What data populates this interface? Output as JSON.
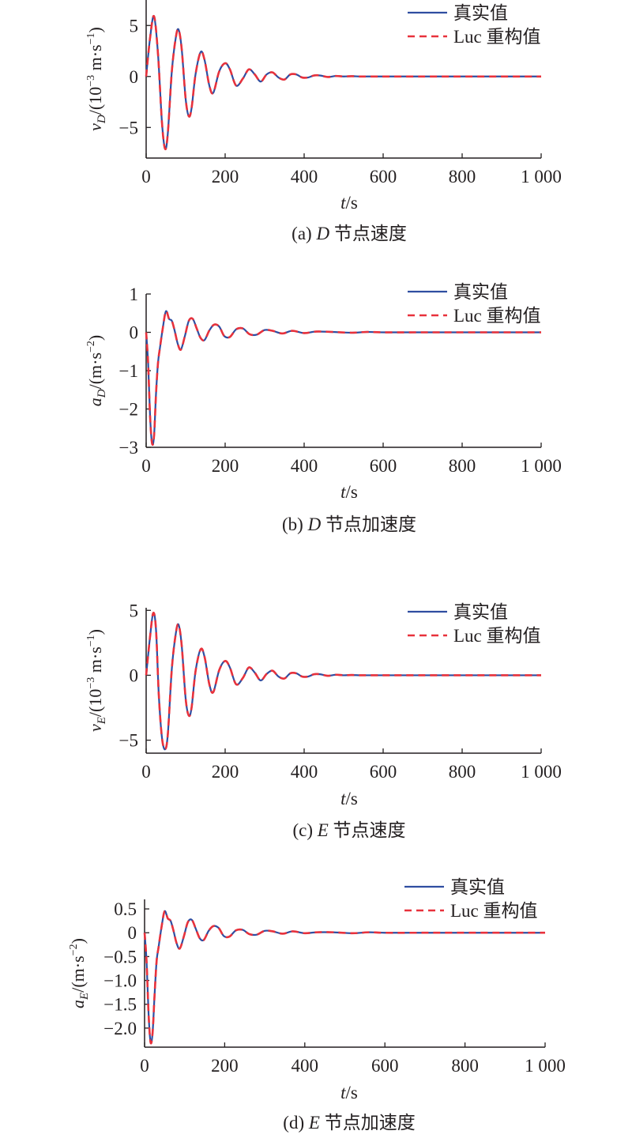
{
  "chart_data": [
    {
      "type": "line",
      "caption": "(a) D 节点速度",
      "ylabel": "v_D/(10^-3 m·s^-1)",
      "xlabel": "t/s",
      "xlim": [
        0,
        1000
      ],
      "ylim": [
        -8,
        7.5
      ],
      "xticks": [
        "0",
        "200",
        "400",
        "600",
        "800",
        "1 000"
      ],
      "xtick_values": [
        0,
        200,
        400,
        600,
        800,
        1000
      ],
      "yticks": [
        "5",
        "0",
        "−5"
      ],
      "ytick_values": [
        5,
        0,
        -5
      ],
      "legend_position": "top-right",
      "series": [
        {
          "name": "真实值",
          "color": "#2f4ea1",
          "style": "solid",
          "x": [
            0,
            10,
            20,
            30,
            40,
            48,
            55,
            65,
            75,
            82,
            90,
            100,
            108,
            115,
            125,
            138,
            148,
            160,
            170,
            185,
            200,
            212,
            228,
            245,
            260,
            275,
            290,
            305,
            320,
            335,
            350,
            365,
            380,
            395,
            410,
            425,
            440,
            460,
            480,
            500,
            520,
            540,
            560,
            600,
            700,
            800,
            900,
            1000
          ],
          "y": [
            0,
            3.8,
            5.9,
            2.2,
            -4.5,
            -7.1,
            -5.5,
            0.5,
            3.8,
            4.6,
            2.7,
            -2.2,
            -3.9,
            -3.1,
            0.2,
            2.4,
            1.6,
            -0.9,
            -1.6,
            0.5,
            1.3,
            0.7,
            -0.9,
            -0.2,
            0.7,
            0.2,
            -0.5,
            0.2,
            0.4,
            -0.1,
            -0.3,
            0.2,
            0.2,
            -0.1,
            -0.1,
            0.1,
            0.1,
            -0.05,
            0.05,
            0,
            0.03,
            0,
            0,
            0,
            0,
            0,
            0,
            0
          ]
        },
        {
          "name": "Luc 重构值",
          "color": "#e8323c",
          "style": "dashed",
          "x": [
            0,
            10,
            20,
            30,
            40,
            48,
            55,
            65,
            75,
            82,
            90,
            100,
            108,
            115,
            125,
            138,
            148,
            160,
            170,
            185,
            200,
            212,
            228,
            245,
            260,
            275,
            290,
            305,
            320,
            335,
            350,
            365,
            380,
            395,
            410,
            425,
            440,
            460,
            480,
            500,
            520,
            540,
            560,
            600,
            700,
            800,
            900,
            1000
          ],
          "y": [
            0,
            3.8,
            5.9,
            2.2,
            -4.5,
            -7.1,
            -5.5,
            0.5,
            3.8,
            4.6,
            2.7,
            -2.2,
            -3.9,
            -3.1,
            0.2,
            2.4,
            1.6,
            -0.9,
            -1.6,
            0.5,
            1.3,
            0.7,
            -0.9,
            -0.2,
            0.7,
            0.2,
            -0.5,
            0.2,
            0.4,
            -0.1,
            -0.3,
            0.2,
            0.2,
            -0.1,
            -0.1,
            0.1,
            0.1,
            -0.05,
            0.05,
            0,
            0.03,
            0,
            0,
            0,
            0,
            0,
            0,
            0
          ]
        }
      ]
    },
    {
      "type": "line",
      "caption": "(b) D 节点加速度",
      "ylabel": "a_D/(m·s^-2)",
      "xlabel": "t/s",
      "xlim": [
        0,
        1000
      ],
      "ylim": [
        -3,
        1
      ],
      "xticks": [
        "0",
        "200",
        "400",
        "600",
        "800",
        "1 000"
      ],
      "xtick_values": [
        0,
        200,
        400,
        600,
        800,
        1000
      ],
      "yticks": [
        "1",
        "0",
        "−1",
        "−2",
        "−3"
      ],
      "ytick_values": [
        1,
        0,
        -1,
        -2,
        -3
      ],
      "legend_position": "top-right",
      "series": [
        {
          "name": "真实值",
          "color": "#2f4ea1",
          "style": "solid",
          "x": [
            0,
            5,
            10,
            15,
            20,
            25,
            30,
            35,
            42,
            50,
            58,
            65,
            72,
            80,
            88,
            98,
            108,
            118,
            128,
            138,
            148,
            160,
            172,
            185,
            198,
            212,
            228,
            245,
            262,
            280,
            300,
            320,
            345,
            370,
            400,
            430,
            470,
            520,
            560,
            600,
            700,
            800,
            900,
            1000
          ],
          "y": [
            0,
            -0.8,
            -2.2,
            -2.9,
            -2.7,
            -1.6,
            -0.8,
            -0.4,
            0.1,
            0.55,
            0.35,
            0.3,
            0.05,
            -0.3,
            -0.45,
            -0.1,
            0.3,
            0.35,
            0.1,
            -0.15,
            -0.2,
            0.05,
            0.2,
            0.15,
            -0.1,
            -0.12,
            0.08,
            0.1,
            -0.05,
            -0.06,
            0.06,
            0.04,
            -0.03,
            0.04,
            -0.02,
            0.02,
            0.01,
            -0.01,
            0.01,
            0,
            0,
            0,
            0,
            0
          ]
        },
        {
          "name": "Luc 重构值",
          "color": "#e8323c",
          "style": "dashed",
          "x": [
            0,
            5,
            10,
            15,
            20,
            25,
            30,
            35,
            42,
            50,
            58,
            65,
            72,
            80,
            88,
            98,
            108,
            118,
            128,
            138,
            148,
            160,
            172,
            185,
            198,
            212,
            228,
            245,
            262,
            280,
            300,
            320,
            345,
            370,
            400,
            430,
            470,
            520,
            560,
            600,
            700,
            800,
            900,
            1000
          ],
          "y": [
            0,
            -0.8,
            -2.2,
            -2.9,
            -2.7,
            -1.6,
            -0.8,
            -0.4,
            0.1,
            0.55,
            0.35,
            0.3,
            0.05,
            -0.3,
            -0.45,
            -0.1,
            0.3,
            0.35,
            0.1,
            -0.15,
            -0.2,
            0.05,
            0.2,
            0.15,
            -0.1,
            -0.12,
            0.08,
            0.1,
            -0.05,
            -0.06,
            0.06,
            0.04,
            -0.03,
            0.04,
            -0.02,
            0.02,
            0.01,
            -0.01,
            0.01,
            0,
            0,
            0,
            0,
            0
          ]
        }
      ]
    },
    {
      "type": "line",
      "caption": "(c) E 节点速度",
      "ylabel": "v_E/(10^-3 m·s^-1)",
      "xlabel": "t/s",
      "xlim": [
        0,
        1000
      ],
      "ylim": [
        -6,
        5.2
      ],
      "xticks": [
        "0",
        "200",
        "400",
        "600",
        "800",
        "1 000"
      ],
      "xtick_values": [
        0,
        200,
        400,
        600,
        800,
        1000
      ],
      "yticks": [
        "5",
        "0",
        "−5"
      ],
      "ytick_values": [
        5,
        0,
        -5
      ],
      "legend_position": "top-right",
      "series": [
        {
          "name": "真实值",
          "color": "#2f4ea1",
          "style": "solid",
          "x": [
            0,
            10,
            18,
            25,
            32,
            40,
            48,
            55,
            65,
            75,
            82,
            90,
            100,
            108,
            115,
            125,
            138,
            148,
            160,
            170,
            185,
            200,
            212,
            228,
            245,
            260,
            275,
            290,
            305,
            320,
            335,
            350,
            365,
            380,
            395,
            410,
            425,
            440,
            460,
            480,
            500,
            520,
            540,
            560,
            600,
            700,
            800,
            900,
            1000
          ],
          "y": [
            0,
            3,
            4.8,
            3.5,
            -1.5,
            -4.8,
            -5.7,
            -4.5,
            0.5,
            3.2,
            3.9,
            2.3,
            -1.8,
            -3.1,
            -2.5,
            0.3,
            2.0,
            1.4,
            -0.7,
            -1.3,
            0.4,
            1.1,
            0.6,
            -0.7,
            -0.2,
            0.6,
            0.2,
            -0.4,
            0.1,
            0.35,
            -0.1,
            -0.25,
            0.15,
            0.15,
            -0.1,
            -0.1,
            0.08,
            0.08,
            -0.04,
            0.04,
            0,
            0.02,
            0,
            0,
            0,
            0,
            0,
            0,
            0
          ]
        },
        {
          "name": "Luc 重构值",
          "color": "#e8323c",
          "style": "dashed",
          "x": [
            0,
            10,
            18,
            25,
            32,
            40,
            48,
            55,
            65,
            75,
            82,
            90,
            100,
            108,
            115,
            125,
            138,
            148,
            160,
            170,
            185,
            200,
            212,
            228,
            245,
            260,
            275,
            290,
            305,
            320,
            335,
            350,
            365,
            380,
            395,
            410,
            425,
            440,
            460,
            480,
            500,
            520,
            540,
            560,
            600,
            700,
            800,
            900,
            1000
          ],
          "y": [
            0,
            3,
            4.8,
            3.5,
            -1.5,
            -4.8,
            -5.7,
            -4.5,
            0.5,
            3.2,
            3.9,
            2.3,
            -1.8,
            -3.1,
            -2.5,
            0.3,
            2.0,
            1.4,
            -0.7,
            -1.3,
            0.4,
            1.1,
            0.6,
            -0.7,
            -0.2,
            0.6,
            0.2,
            -0.4,
            0.1,
            0.35,
            -0.1,
            -0.25,
            0.15,
            0.15,
            -0.1,
            -0.1,
            0.08,
            0.08,
            -0.04,
            0.04,
            0,
            0.02,
            0,
            0,
            0,
            0,
            0,
            0,
            0
          ]
        }
      ]
    },
    {
      "type": "line",
      "caption": "(d) E 节点加速度",
      "ylabel": "a_E/(m·s^-2)",
      "xlabel": "t/s",
      "xlim": [
        0,
        1000
      ],
      "ylim": [
        -2.4,
        0.7
      ],
      "xticks": [
        "0",
        "200",
        "400",
        "600",
        "800",
        "1 000"
      ],
      "xtick_values": [
        0,
        200,
        400,
        600,
        800,
        1000
      ],
      "yticks": [
        "0.5",
        "0",
        "−0.5",
        "−1.0",
        "−1.5",
        "−2.0"
      ],
      "ytick_values": [
        0.5,
        0,
        -0.5,
        -1.0,
        -1.5,
        -2.0
      ],
      "legend_position": "top-right",
      "series": [
        {
          "name": "真实值",
          "color": "#2f4ea1",
          "style": "solid",
          "x": [
            0,
            5,
            10,
            15,
            20,
            25,
            30,
            35,
            42,
            50,
            58,
            65,
            72,
            80,
            88,
            98,
            108,
            118,
            128,
            138,
            148,
            160,
            172,
            185,
            198,
            212,
            228,
            245,
            262,
            280,
            300,
            320,
            345,
            370,
            400,
            430,
            470,
            520,
            560,
            600,
            700,
            800,
            900,
            1000
          ],
          "y": [
            0,
            -0.6,
            -1.7,
            -2.3,
            -2.1,
            -1.3,
            -0.6,
            -0.3,
            0.1,
            0.45,
            0.3,
            0.25,
            0.05,
            -0.22,
            -0.33,
            -0.08,
            0.22,
            0.27,
            0.08,
            -0.12,
            -0.15,
            0.04,
            0.14,
            0.1,
            -0.07,
            -0.08,
            0.05,
            0.06,
            -0.03,
            -0.04,
            0.04,
            0.03,
            -0.02,
            0.03,
            -0.01,
            0.01,
            0.01,
            -0.01,
            0.01,
            0,
            0,
            0,
            0,
            0
          ]
        },
        {
          "name": "Luc 重构值",
          "color": "#e8323c",
          "style": "dashed",
          "x": [
            0,
            5,
            10,
            15,
            20,
            25,
            30,
            35,
            42,
            50,
            58,
            65,
            72,
            80,
            88,
            98,
            108,
            118,
            128,
            138,
            148,
            160,
            172,
            185,
            198,
            212,
            228,
            245,
            262,
            280,
            300,
            320,
            345,
            370,
            400,
            430,
            470,
            520,
            560,
            600,
            700,
            800,
            900,
            1000
          ],
          "y": [
            0,
            -0.6,
            -1.7,
            -2.3,
            -2.1,
            -1.3,
            -0.6,
            -0.3,
            0.1,
            0.45,
            0.3,
            0.25,
            0.05,
            -0.22,
            -0.33,
            -0.08,
            0.22,
            0.27,
            0.08,
            -0.12,
            -0.15,
            0.04,
            0.14,
            0.1,
            -0.07,
            -0.08,
            0.05,
            0.06,
            -0.03,
            -0.04,
            0.04,
            0.03,
            -0.02,
            0.03,
            -0.01,
            0.01,
            0.01,
            -0.01,
            0.01,
            0,
            0,
            0,
            0,
            0
          ]
        }
      ]
    }
  ],
  "labels": {
    "a": {
      "caption_pre": "(a) ",
      "caption_var": "D",
      "caption_post": " 节点速度",
      "ylabel_var": "v",
      "ylabel_sub": "D",
      "ylabel_rest": "/(10",
      "ylabel_sup": "−3",
      "ylabel_rest2": " m·s",
      "ylabel_sup2": "−1",
      "ylabel_end": ")"
    },
    "b": {
      "caption_pre": "(b) ",
      "caption_var": "D",
      "caption_post": " 节点加速度",
      "ylabel_var": "a",
      "ylabel_sub": "D",
      "ylabel_rest": "/(m·s",
      "ylabel_sup": "−2",
      "ylabel_end": ")"
    },
    "c": {
      "caption_pre": "(c) ",
      "caption_var": "E",
      "caption_post": " 节点速度",
      "ylabel_var": "v",
      "ylabel_sub": "E",
      "ylabel_rest": "/(10",
      "ylabel_sup": "−3",
      "ylabel_rest2": " m·s",
      "ylabel_sup2": "−1",
      "ylabel_end": ")"
    },
    "d": {
      "caption_pre": "(d) ",
      "caption_var": "E",
      "caption_post": " 节点加速度",
      "ylabel_var": "a",
      "ylabel_sub": "E",
      "ylabel_rest": "/(m·s",
      "ylabel_sup": "−2",
      "ylabel_end": ")"
    },
    "xlabel_var": "t",
    "xlabel_unit": "/s"
  }
}
